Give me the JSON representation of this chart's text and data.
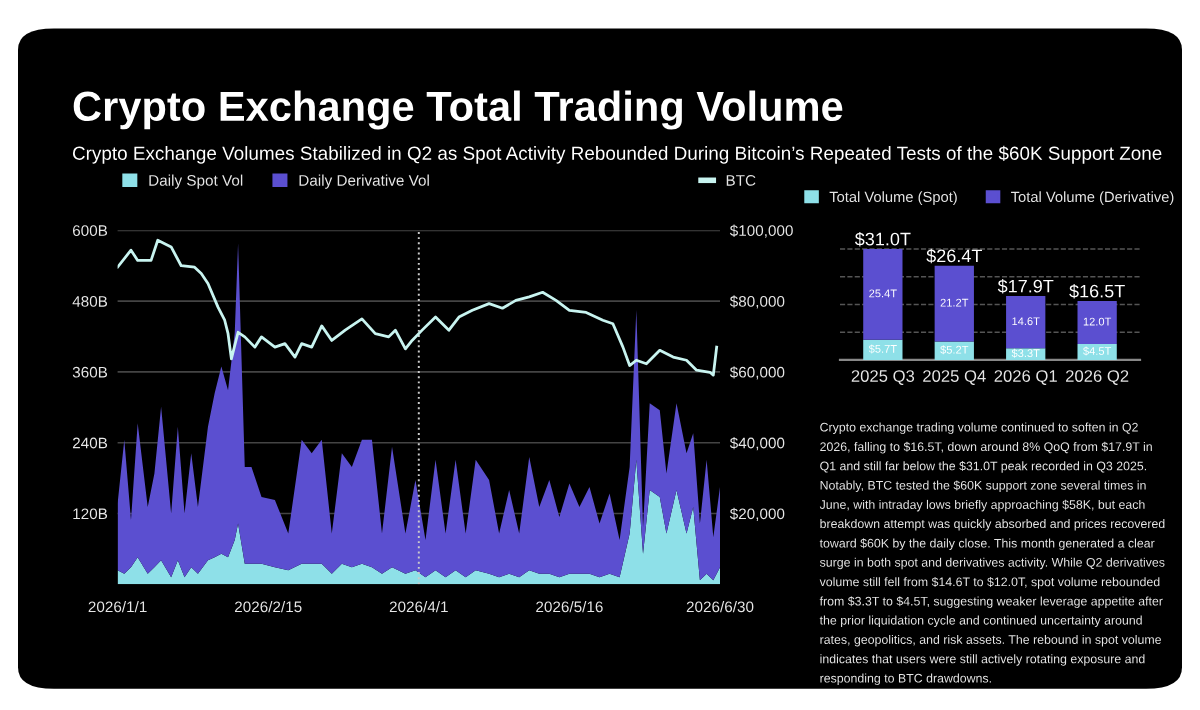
{
  "chart_data": [
    {
      "type": "area",
      "title": "Crypto Exchange Total Trading Volume",
      "subtitle": "Crypto Exchange Volumes Stabilized in Q2 as Spot Activity Rebounded During Bitcoin’s Repeated Tests of the $60K Support Zone",
      "stacked": true,
      "legend": "top",
      "grid": "y",
      "x": [
        "2026-01-01",
        "2026-01-03",
        "2026-01-05",
        "2026-01-07",
        "2026-01-10",
        "2026-01-12",
        "2026-01-14",
        "2026-01-17",
        "2026-01-19",
        "2026-01-21",
        "2026-01-23",
        "2026-01-25",
        "2026-01-28",
        "2026-01-30",
        "2026-02-01",
        "2026-02-03",
        "2026-02-05",
        "2026-02-06",
        "2026-02-08",
        "2026-02-10",
        "2026-02-13",
        "2026-02-17",
        "2026-02-21",
        "2026-02-25",
        "2026-02-28",
        "2026-03-03",
        "2026-03-06",
        "2026-03-09",
        "2026-03-12",
        "2026-03-15",
        "2026-03-18",
        "2026-03-21",
        "2026-03-24",
        "2026-03-28",
        "2026-03-31",
        "2026-04-03",
        "2026-04-06",
        "2026-04-09",
        "2026-04-12",
        "2026-04-15",
        "2026-04-18",
        "2026-04-22",
        "2026-04-25",
        "2026-04-28",
        "2026-05-01",
        "2026-05-04",
        "2026-05-07",
        "2026-05-10",
        "2026-05-13",
        "2026-05-16",
        "2026-05-19",
        "2026-05-22",
        "2026-05-25",
        "2026-05-28",
        "2026-05-31",
        "2026-06-03",
        "2026-06-05",
        "2026-06-07",
        "2026-06-09",
        "2026-06-12",
        "2026-06-14",
        "2026-06-17",
        "2026-06-20",
        "2026-06-22",
        "2026-06-24",
        "2026-06-26",
        "2026-06-28",
        "2026-06-30"
      ],
      "series": [
        {
          "name": "Daily Spot Vol",
          "color": "#8ee0e8",
          "values": [
            24,
            18,
            29,
            46,
            18,
            29,
            41,
            12,
            41,
            12,
            29,
            18,
            41,
            46,
            52,
            46,
            75,
            103,
            35,
            35,
            35,
            29,
            24,
            35,
            35,
            35,
            18,
            35,
            29,
            35,
            29,
            18,
            29,
            18,
            24,
            12,
            24,
            12,
            24,
            12,
            24,
            18,
            12,
            18,
            12,
            24,
            18,
            18,
            12,
            18,
            18,
            18,
            12,
            18,
            12,
            86,
            211,
            52,
            160,
            148,
            86,
            160,
            86,
            131,
            7,
            18,
            7,
            29
          ]
        },
        {
          "name": "Daily Derivative Vol",
          "color": "#5b4fd0",
          "values": [
            113,
            227,
            80,
            227,
            113,
            159,
            260,
            108,
            226,
            108,
            193,
            113,
            226,
            278,
            317,
            283,
            351,
            475,
            164,
            164,
            113,
            114,
            62,
            210,
            187,
            210,
            68,
            187,
            170,
            210,
            216,
            68,
            204,
            68,
            153,
            63,
            187,
            74,
            187,
            74,
            187,
            159,
            74,
            142,
            74,
            192,
            113,
            159,
            102,
            153,
            113,
            147,
            91,
            136,
            63,
            113,
            254,
            45,
            147,
            147,
            102,
            147,
            136,
            125,
            96,
            193,
            73,
            136
          ]
        },
        {
          "name": "BTC",
          "type": "line",
          "axis": "y2",
          "color": "#c8f4f0",
          "x": [
            "2026-01-01",
            "2026-01-05",
            "2026-01-07",
            "2026-01-11",
            "2026-01-13",
            "2026-01-17",
            "2026-01-20",
            "2026-01-24",
            "2026-01-26",
            "2026-01-28",
            "2026-01-31",
            "2026-02-02",
            "2026-02-03",
            "2026-02-04",
            "2026-02-06",
            "2026-02-08",
            "2026-02-11",
            "2026-02-13",
            "2026-02-17",
            "2026-02-20",
            "2026-02-23",
            "2026-02-25",
            "2026-02-28",
            "2026-03-03",
            "2026-03-06",
            "2026-03-10",
            "2026-03-15",
            "2026-03-19",
            "2026-03-23",
            "2026-03-25",
            "2026-03-28",
            "2026-03-30",
            "2026-04-02",
            "2026-04-06",
            "2026-04-10",
            "2026-04-13",
            "2026-04-17",
            "2026-04-22",
            "2026-04-26",
            "2026-04-30",
            "2026-05-04",
            "2026-05-08",
            "2026-05-12",
            "2026-05-16",
            "2026-05-21",
            "2026-05-26",
            "2026-05-29",
            "2026-06-01",
            "2026-06-03",
            "2026-06-05",
            "2026-06-08",
            "2026-06-12",
            "2026-06-16",
            "2026-06-20",
            "2026-06-23",
            "2026-06-27",
            "2026-06-28",
            "2026-06-29"
          ],
          "values": [
            89600,
            94400,
            91500,
            91500,
            97200,
            95300,
            90000,
            89600,
            87800,
            85000,
            78300,
            74600,
            70800,
            63700,
            71200,
            69900,
            67000,
            69900,
            67000,
            68000,
            64200,
            68000,
            67000,
            73000,
            68900,
            71800,
            75000,
            70800,
            69900,
            71800,
            66500,
            68900,
            71800,
            75500,
            71800,
            75500,
            77400,
            79300,
            78000,
            80200,
            81200,
            82500,
            80200,
            77400,
            76800,
            74600,
            73600,
            67000,
            61800,
            63300,
            62300,
            66100,
            64200,
            63300,
            60500,
            59900,
            59100,
            67000
          ]
        }
      ],
      "xlim": [
        "2026-01-01",
        "2026-06-30"
      ],
      "xticks": [
        {
          "value": "2026-01-01",
          "label": "2026/1/1"
        },
        {
          "value": "2026-02-15",
          "label": "2026/2/15"
        },
        {
          "value": "2026-04-01",
          "label": "2026/4/1"
        },
        {
          "value": "2026-05-16",
          "label": "2026/5/16"
        },
        {
          "value": "2026-06-30",
          "label": "2026/6/30"
        }
      ],
      "ylim": [
        0,
        600
      ],
      "yticks": [
        {
          "value": 120,
          "label": "120B"
        },
        {
          "value": 240,
          "label": "240B"
        },
        {
          "value": 360,
          "label": "360B"
        },
        {
          "value": 480,
          "label": "480B"
        },
        {
          "value": 600,
          "label": "600B"
        }
      ],
      "y2lim": [
        0,
        100000
      ],
      "y2ticks": [
        {
          "value": 20000,
          "label": "$20,000"
        },
        {
          "value": 40000,
          "label": "$40,000"
        },
        {
          "value": 60000,
          "label": "$60,000"
        },
        {
          "value": 80000,
          "label": "$80,000"
        },
        {
          "value": 100000,
          "label": "$100,000"
        }
      ],
      "ref_lines": [
        {
          "axis": "x",
          "value": "2026-04-01",
          "color": "#cccccc",
          "line_style": "dotted"
        }
      ]
    },
    {
      "type": "bar",
      "stacked": true,
      "legend": "top",
      "tick_labels": "x",
      "categories": [
        "2025 Q3",
        "2025 Q4",
        "2026 Q1",
        "2026 Q2"
      ],
      "series": [
        {
          "name": "Total Volume (Spot)",
          "color": "#8ee0e8",
          "values": [
            5.7,
            5.2,
            3.3,
            4.5
          ],
          "value_labels": [
            "$5.7T",
            "$5.2T",
            "$3.3T",
            "$4.5T"
          ]
        },
        {
          "name": "Total Volume (Derivative)",
          "color": "#5b4fd0",
          "values": [
            25.4,
            21.2,
            14.6,
            12.0
          ],
          "value_labels": [
            "25.4T",
            "21.2T",
            "14.6T",
            "12.0T"
          ]
        }
      ],
      "grid": "y",
      "annotations": [
        {
          "text": "$31.0T",
          "x": "2025 Q3"
        },
        {
          "text": "$26.4T",
          "x": "2025 Q4"
        },
        {
          "text": "$17.9T",
          "x": "2026 Q1"
        },
        {
          "text": "$16.5T",
          "x": "2026 Q2"
        }
      ]
    },
    {
      "type": "other",
      "annotations": [
        "Crypto exchange trading volume continued to soften in Q2",
        "2026, falling to $16.5T, down around 8% QoQ from $17.9T in",
        "Q1 and still far below the $31.0T peak recorded in Q3 2025.",
        "Notably, BTC tested the $60K support zone several times in",
        "June, with intraday lows briefly approaching $58K, but each",
        "breakdown attempt was quickly absorbed and prices recovered",
        "toward $60K by the daily close. This month generated a clear",
        "surge in both spot and derivatives activity. While Q2 derivatives",
        "volume still fell from $14.6T to $12.0T, spot volume rebounded",
        "from $3.3T to $4.5T, suggesting weaker leverage appetite after",
        "the prior liquidation cycle and continued uncertainty around",
        "rates, geopolitics, and risk assets. The rebound in spot volume",
        "indicates that users were still actively rotating exposure and",
        "responding to BTC drawdowns."
      ]
    }
  ]
}
